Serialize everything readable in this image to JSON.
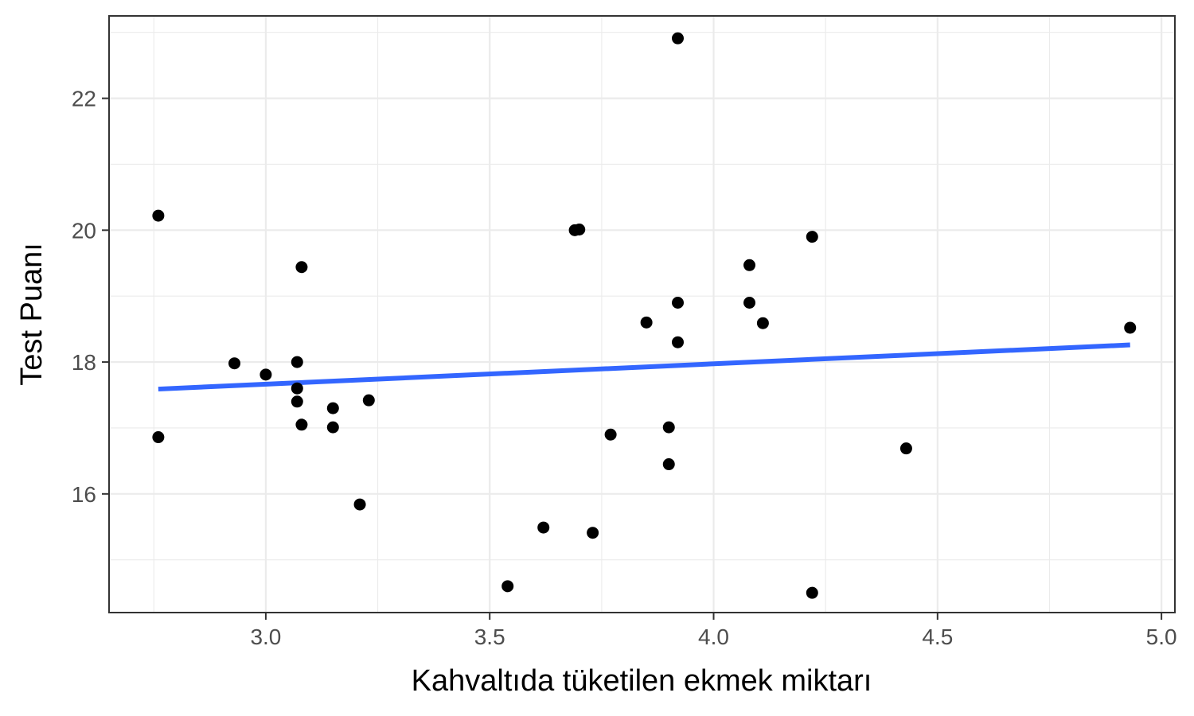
{
  "chart_data": {
    "type": "scatter",
    "title": "",
    "xlabel": "Kahvaltıda tüketilen ekmek miktarı",
    "ylabel": "Test Puanı",
    "xlim": [
      2.65,
      5.03
    ],
    "ylim": [
      14.2,
      23.25
    ],
    "x_ticks": [
      3.0,
      3.5,
      4.0,
      4.5,
      5.0
    ],
    "x_tick_labels": [
      "3.0",
      "3.5",
      "4.0",
      "4.5",
      "5.0"
    ],
    "y_ticks": [
      16,
      18,
      20,
      22
    ],
    "y_tick_labels": [
      "16",
      "18",
      "20",
      "22"
    ],
    "x_minor": [
      2.75,
      3.25,
      3.75,
      4.25,
      4.75
    ],
    "y_minor": [
      15,
      17,
      19,
      21,
      23
    ],
    "grid": true,
    "point_color": "#000000",
    "line_color": "#3366ff",
    "points": [
      {
        "x": 2.76,
        "y": 20.22
      },
      {
        "x": 2.76,
        "y": 16.86
      },
      {
        "x": 2.93,
        "y": 17.98
      },
      {
        "x": 3.0,
        "y": 17.81
      },
      {
        "x": 3.07,
        "y": 18.0
      },
      {
        "x": 3.07,
        "y": 17.6
      },
      {
        "x": 3.07,
        "y": 17.4
      },
      {
        "x": 3.08,
        "y": 19.44
      },
      {
        "x": 3.08,
        "y": 17.05
      },
      {
        "x": 3.15,
        "y": 17.3
      },
      {
        "x": 3.15,
        "y": 17.01
      },
      {
        "x": 3.21,
        "y": 15.84
      },
      {
        "x": 3.23,
        "y": 17.42
      },
      {
        "x": 3.54,
        "y": 14.6
      },
      {
        "x": 3.62,
        "y": 15.49
      },
      {
        "x": 3.69,
        "y": 20.0
      },
      {
        "x": 3.7,
        "y": 20.01
      },
      {
        "x": 3.73,
        "y": 15.41
      },
      {
        "x": 3.77,
        "y": 16.9
      },
      {
        "x": 3.85,
        "y": 18.6
      },
      {
        "x": 3.9,
        "y": 17.01
      },
      {
        "x": 3.9,
        "y": 16.45
      },
      {
        "x": 3.92,
        "y": 22.91
      },
      {
        "x": 3.92,
        "y": 18.9
      },
      {
        "x": 3.92,
        "y": 18.3
      },
      {
        "x": 4.08,
        "y": 19.47
      },
      {
        "x": 4.08,
        "y": 18.9
      },
      {
        "x": 4.11,
        "y": 18.59
      },
      {
        "x": 4.22,
        "y": 19.9
      },
      {
        "x": 4.22,
        "y": 14.5
      },
      {
        "x": 4.43,
        "y": 16.69
      },
      {
        "x": 4.93,
        "y": 18.52
      }
    ],
    "trend_line": {
      "method": "linear",
      "x": [
        2.76,
        4.93
      ],
      "y": [
        17.59,
        18.26
      ]
    }
  }
}
